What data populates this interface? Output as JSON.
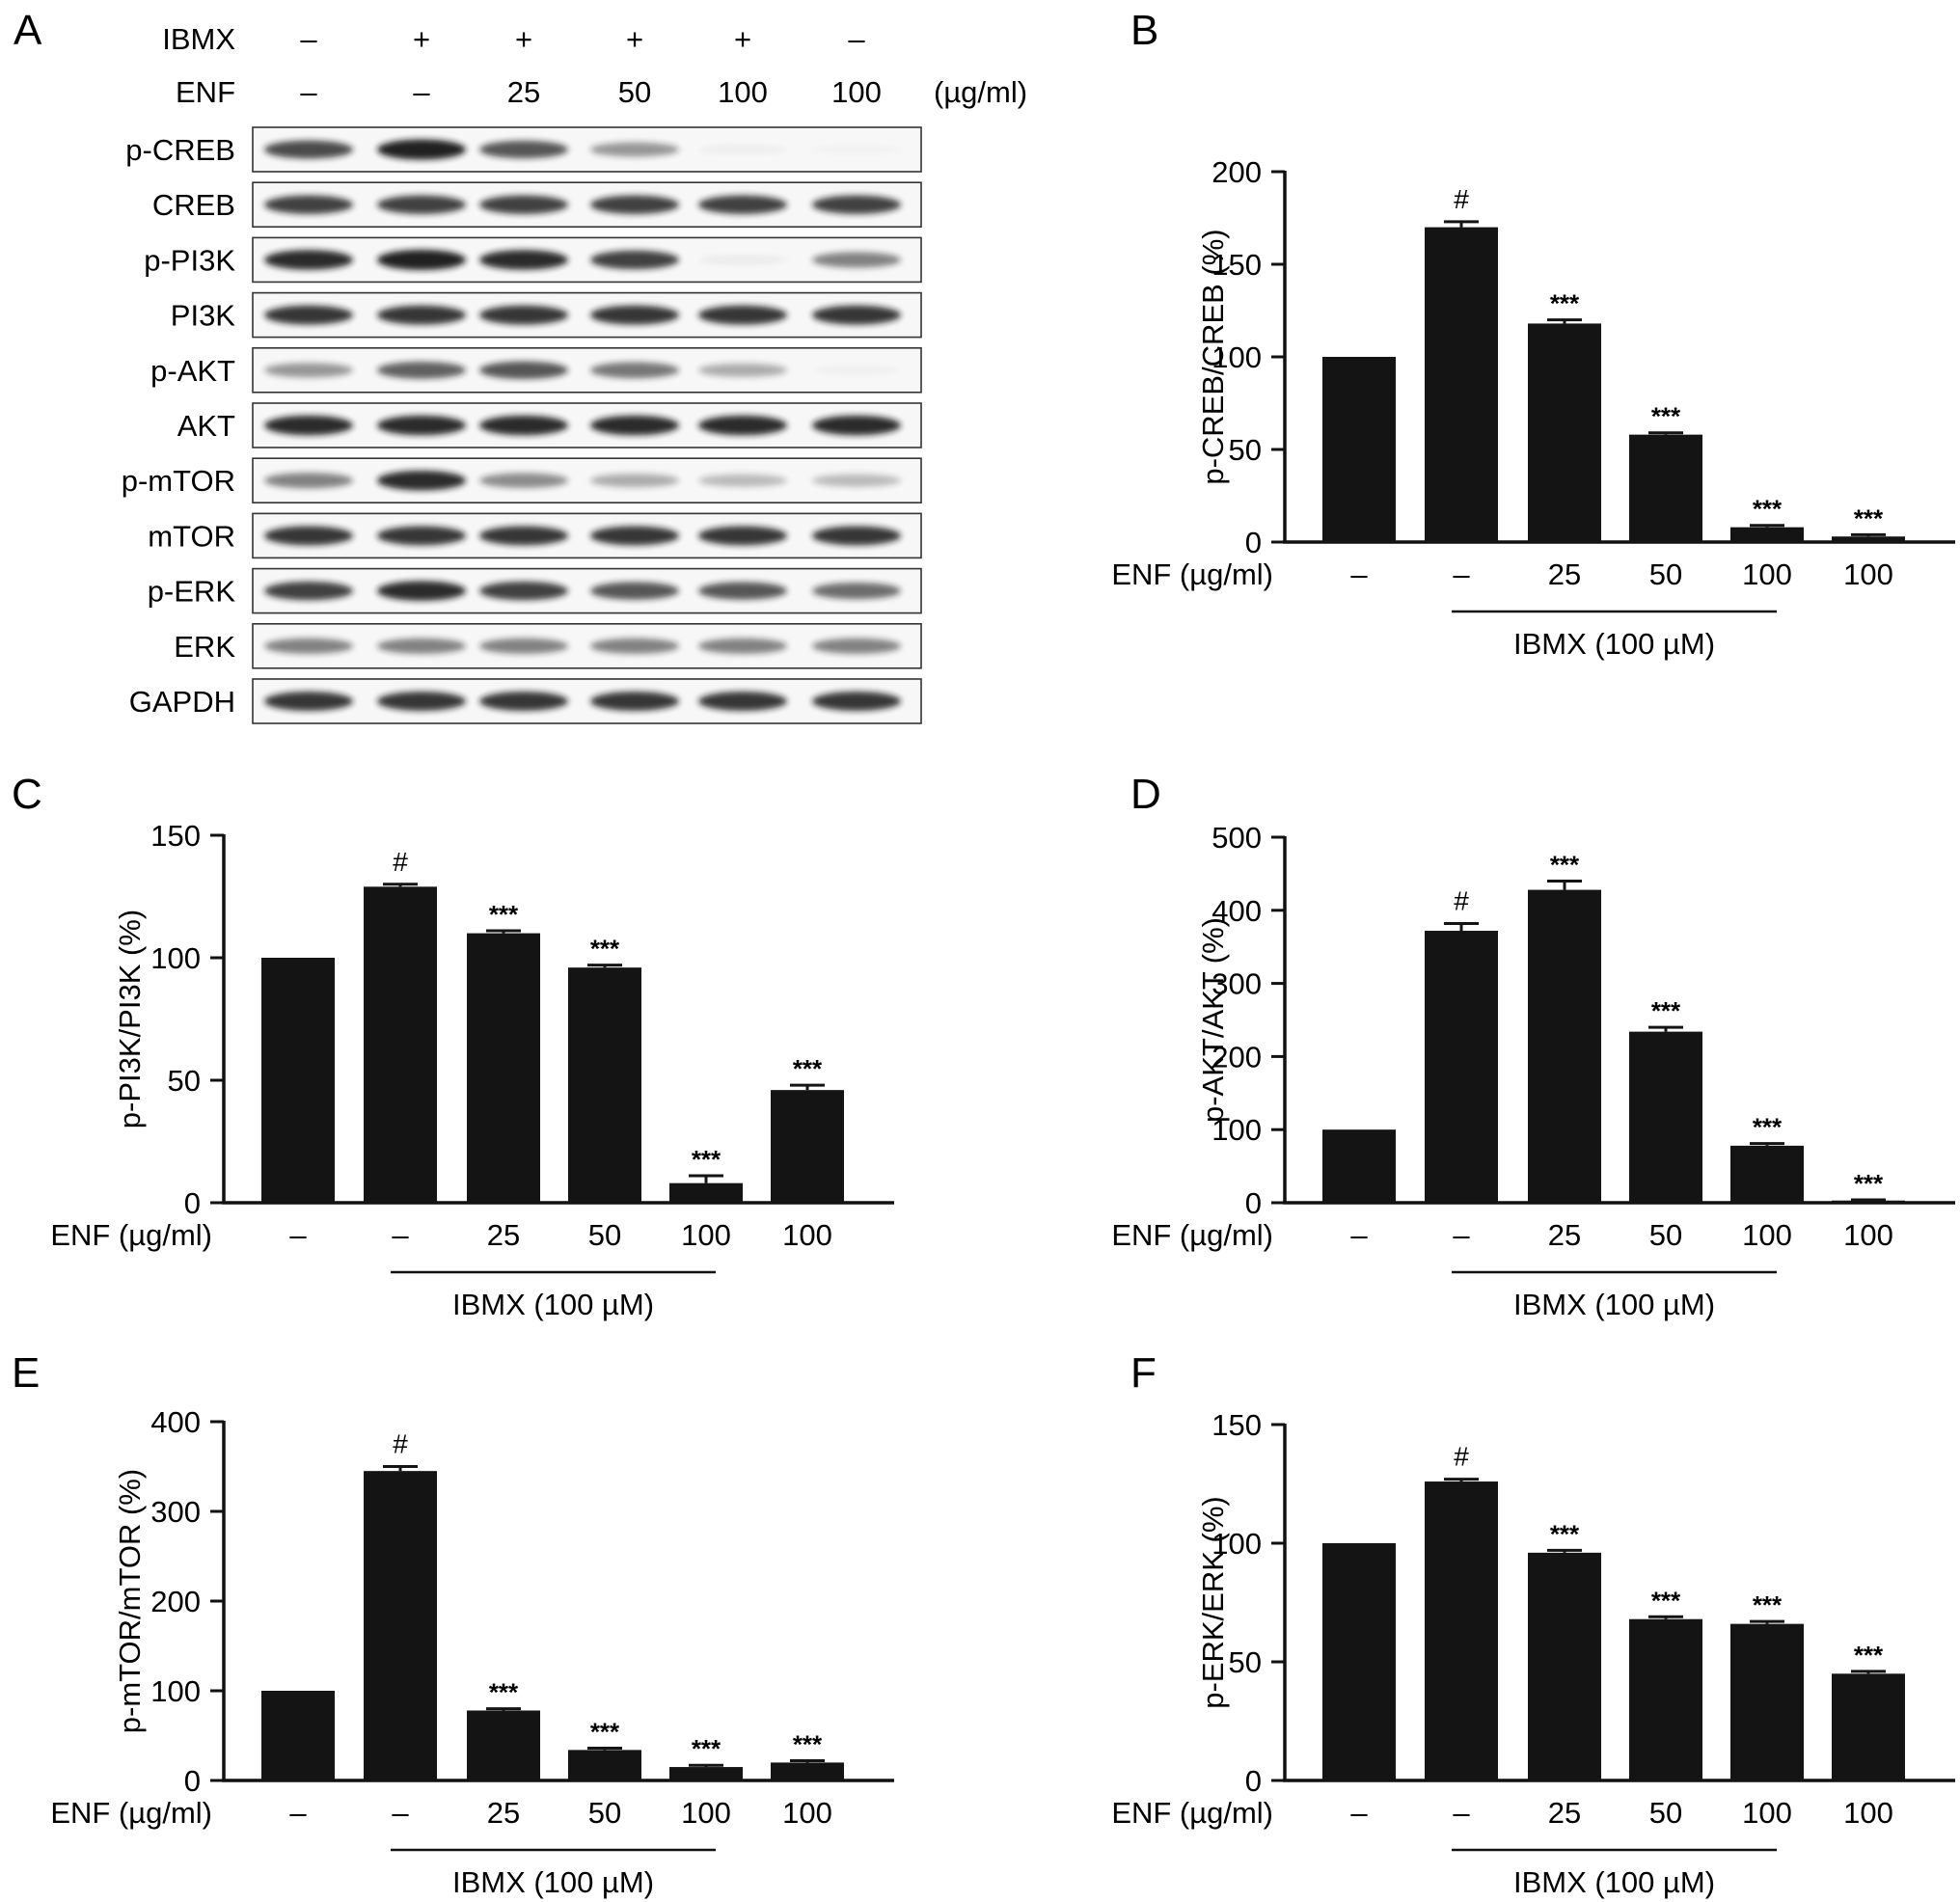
{
  "panel_a": {
    "letter": "A",
    "rows": [
      {
        "label": "IBMX",
        "values": [
          "–",
          "+",
          "+",
          "+",
          "+",
          "–"
        ]
      },
      {
        "label": "ENF",
        "values": [
          "–",
          "–",
          "25",
          "50",
          "100",
          "100"
        ],
        "unit": "(µg/ml)"
      }
    ],
    "blots": [
      {
        "label": "p-CREB",
        "intensity": [
          0.8,
          1.0,
          0.75,
          0.45,
          0.04,
          0.02
        ]
      },
      {
        "label": "CREB",
        "intensity": [
          0.85,
          0.85,
          0.85,
          0.85,
          0.85,
          0.85
        ]
      },
      {
        "label": "p-PI3K",
        "intensity": [
          0.95,
          1.0,
          0.95,
          0.85,
          0.05,
          0.55
        ]
      },
      {
        "label": "PI3K",
        "intensity": [
          0.9,
          0.9,
          0.9,
          0.9,
          0.9,
          0.9
        ]
      },
      {
        "label": "p-AKT",
        "intensity": [
          0.45,
          0.7,
          0.75,
          0.6,
          0.35,
          0.03
        ]
      },
      {
        "label": "AKT",
        "intensity": [
          0.95,
          0.95,
          0.95,
          0.95,
          0.95,
          0.95
        ]
      },
      {
        "label": "p-mTOR",
        "intensity": [
          0.55,
          0.95,
          0.5,
          0.35,
          0.28,
          0.28
        ]
      },
      {
        "label": "mTOR",
        "intensity": [
          0.9,
          0.9,
          0.9,
          0.9,
          0.9,
          0.9
        ]
      },
      {
        "label": "p-ERK",
        "intensity": [
          0.85,
          0.95,
          0.85,
          0.75,
          0.75,
          0.65
        ]
      },
      {
        "label": "ERK",
        "intensity": [
          0.55,
          0.55,
          0.55,
          0.55,
          0.55,
          0.55
        ]
      },
      {
        "label": "GAPDH",
        "intensity": [
          0.9,
          0.9,
          0.9,
          0.9,
          0.9,
          0.9
        ]
      }
    ]
  },
  "chart_data": [
    {
      "panel": "B",
      "type": "bar",
      "categories": [
        "–",
        "–",
        "25",
        "50",
        "100",
        "100"
      ],
      "values": [
        100,
        170,
        118,
        58,
        8,
        3
      ],
      "errors": [
        0,
        3,
        2,
        1,
        1,
        1
      ],
      "annotations": [
        "",
        "#",
        "***",
        "***",
        "***",
        "***"
      ],
      "xlabel": "ENF (µg/ml)",
      "ylabel": "p-CREB/CREB (%)",
      "ylim": [
        0,
        200
      ],
      "yticks": [
        0,
        50,
        100,
        150,
        200
      ],
      "group_label": "IBMX (100 µM)",
      "group_span": [
        1,
        4
      ]
    },
    {
      "panel": "C",
      "type": "bar",
      "categories": [
        "–",
        "–",
        "25",
        "50",
        "100",
        "100"
      ],
      "values": [
        100,
        129,
        110,
        96,
        8,
        46
      ],
      "errors": [
        0,
        1,
        1,
        1,
        3,
        2
      ],
      "annotations": [
        "",
        "#",
        "***",
        "***",
        "***",
        "***"
      ],
      "xlabel": "ENF (µg/ml)",
      "ylabel": "p-PI3K/PI3K (%)",
      "ylim": [
        0,
        150
      ],
      "yticks": [
        0,
        50,
        100,
        150
      ],
      "group_label": "IBMX (100 µM)",
      "group_span": [
        1,
        4
      ]
    },
    {
      "panel": "D",
      "type": "bar",
      "categories": [
        "–",
        "–",
        "25",
        "50",
        "100",
        "100"
      ],
      "values": [
        100,
        372,
        428,
        234,
        78,
        3
      ],
      "errors": [
        0,
        10,
        12,
        6,
        3,
        1
      ],
      "annotations": [
        "",
        "#",
        "***",
        "***",
        "***",
        "***"
      ],
      "xlabel": "ENF (µg/ml)",
      "ylabel": "p-AKT/AKT (%)",
      "ylim": [
        0,
        500
      ],
      "yticks": [
        0,
        100,
        200,
        300,
        400,
        500
      ],
      "group_label": "IBMX (100 µM)",
      "group_span": [
        1,
        4
      ]
    },
    {
      "panel": "E",
      "type": "bar",
      "categories": [
        "–",
        "–",
        "25",
        "50",
        "100",
        "100"
      ],
      "values": [
        100,
        345,
        78,
        34,
        15,
        20
      ],
      "errors": [
        0,
        5,
        2,
        2,
        2,
        2
      ],
      "annotations": [
        "",
        "#",
        "***",
        "***",
        "***",
        "***"
      ],
      "xlabel": "ENF (µg/ml)",
      "ylabel": "p-mTOR/mTOR (%)",
      "ylim": [
        0,
        400
      ],
      "yticks": [
        0,
        100,
        200,
        300,
        400
      ],
      "group_label": "IBMX (100 µM)",
      "group_span": [
        1,
        4
      ]
    },
    {
      "panel": "F",
      "type": "bar",
      "categories": [
        "–",
        "–",
        "25",
        "50",
        "100",
        "100"
      ],
      "values": [
        100,
        126,
        96,
        68,
        66,
        45
      ],
      "errors": [
        0,
        1,
        1,
        1,
        1,
        1
      ],
      "annotations": [
        "",
        "#",
        "***",
        "***",
        "***",
        "***"
      ],
      "xlabel": "ENF (µg/ml)",
      "ylabel": "p-ERK/ERK (%)",
      "ylim": [
        0,
        150
      ],
      "yticks": [
        0,
        50,
        100,
        150
      ],
      "group_label": "IBMX (100 µM)",
      "group_span": [
        1,
        4
      ]
    }
  ]
}
